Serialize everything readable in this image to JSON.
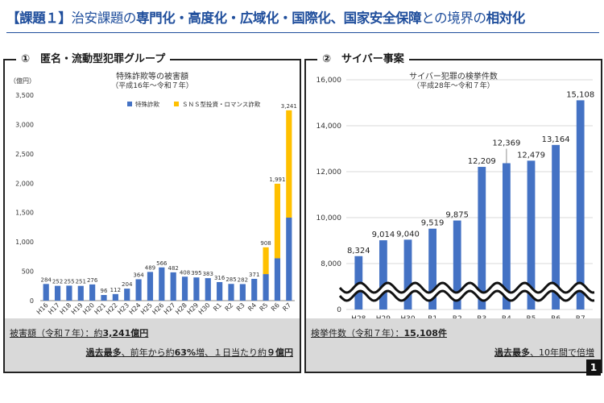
{
  "header": {
    "title_parts": [
      "【課題１】",
      "治安課題の",
      "専門化・高度化・広域化・国際化、",
      "国家安全保障",
      "との境界の",
      "相対化"
    ]
  },
  "panel_left": {
    "title": "①　匿名・流動型犯罪グループ",
    "footer": {
      "line1_prefix": "被害額（令和７年）：約",
      "line1_value": "3,241億円",
      "line2_bold": "過去最多",
      "line2_rest": "、前年から約",
      "line2_pct": "63%",
      "line2_mid": "増、１日当たり約",
      "line2_num": "９億円"
    }
  },
  "panel_right": {
    "title": "②　サイバー事案",
    "footer": {
      "line1_prefix": "検挙件数（令和７年）：",
      "line1_value": "15,108件",
      "line2_bold": "過去最多",
      "line2_rest": "、10年間で倍増"
    }
  },
  "page_number": "1",
  "colors": {
    "blue": "#4472c4",
    "yellow": "#ffc000",
    "title_blue": "#1f4e9c"
  },
  "chart_data": [
    {
      "type": "bar",
      "stacked": true,
      "title": "特殊詐欺等の被害額",
      "subtitle": "（平成16年～令和７年）",
      "unit_label": "（億円）",
      "categories": [
        "H16",
        "H17",
        "H18",
        "H19",
        "H20",
        "H21",
        "H22",
        "H23",
        "H24",
        "H25",
        "H26",
        "H27",
        "H28",
        "H29",
        "H30",
        "R1",
        "R2",
        "R3",
        "R4",
        "R5",
        "R6",
        "R7"
      ],
      "series": [
        {
          "name": "特殊詐欺",
          "values": [
            284,
            252,
            255,
            251,
            276,
            96,
            112,
            204,
            364,
            489,
            566,
            482,
            408,
            395,
            383,
            316,
            285,
            282,
            371,
            452,
            721,
            1414
          ]
        },
        {
          "name": "ＳＮＳ型投資・ロマンス詐欺",
          "values": [
            0,
            0,
            0,
            0,
            0,
            0,
            0,
            0,
            0,
            0,
            0,
            0,
            0,
            0,
            0,
            0,
            0,
            0,
            0,
            456,
            1270,
            1827
          ]
        }
      ],
      "totals": [
        "284",
        "252",
        "255",
        "251",
        "276",
        "96",
        "112",
        "204",
        "364",
        "489",
        "566",
        "482",
        "408",
        "395",
        "383",
        "316",
        "285",
        "282",
        "371",
        "908",
        "1,991",
        "3,241"
      ],
      "yticks": [
        "0",
        "500",
        "1,000",
        "1,500",
        "2,000",
        "2,500",
        "3,000",
        "3,500"
      ],
      "ylim": [
        0,
        3500
      ],
      "grid": false,
      "legend_position": "top-right"
    },
    {
      "type": "bar",
      "title": "サイバー犯罪の検挙件数",
      "subtitle": "（平成28年～令和７年）",
      "categories": [
        "H28",
        "H29",
        "H30",
        "R1",
        "R2",
        "R3",
        "R4",
        "R5",
        "R6",
        "R7"
      ],
      "values": [
        8324,
        9014,
        9040,
        9519,
        9875,
        12209,
        12369,
        12479,
        13164,
        15108
      ],
      "labels": [
        "8,324",
        "9,014",
        "9,040",
        "9,519",
        "9,875",
        "12,209",
        "12,369",
        "12,479",
        "13,164",
        "15,108"
      ],
      "yticks": [
        "0",
        "8,000",
        "10,000",
        "12,000",
        "14,000",
        "16,000"
      ],
      "ylim": [
        0,
        16000
      ],
      "axis_break": [
        0,
        7000
      ],
      "grid": true,
      "legend": null
    }
  ]
}
